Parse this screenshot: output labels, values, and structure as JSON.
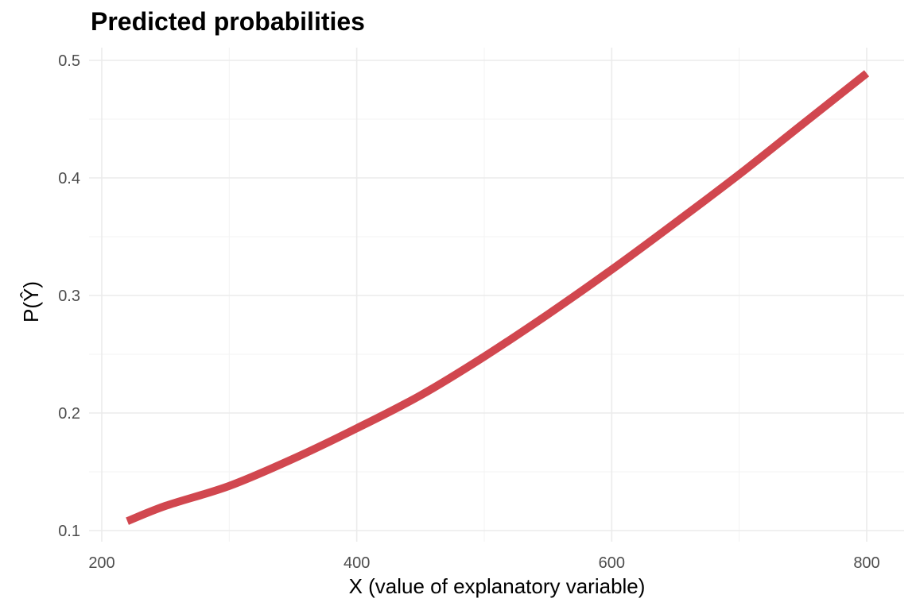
{
  "chart_data": {
    "type": "line",
    "title": "Predicted probabilities",
    "xlabel": "X (value of explanatory variable)",
    "ylabel": "P(Ŷ)",
    "xlim": [
      200,
      830
    ],
    "ylim": [
      0.1,
      0.5
    ],
    "x_ticks": [
      200,
      400,
      600,
      800
    ],
    "x_tick_labels": [
      "200",
      "400",
      "600",
      "800"
    ],
    "x_minor_ticks": [
      300,
      500,
      700
    ],
    "y_ticks": [
      0.1,
      0.2,
      0.3,
      0.4,
      0.5
    ],
    "y_tick_labels": [
      "0.1",
      "0.2",
      "0.3",
      "0.4",
      "0.5"
    ],
    "y_minor_ticks": [
      0.15,
      0.25,
      0.35,
      0.45
    ],
    "grid": true,
    "legend": "none",
    "color": "#d1474f",
    "series": [
      {
        "x": [
          220,
          250,
          300,
          350,
          400,
          450,
          500,
          550,
          600,
          650,
          700,
          750,
          800
        ],
        "values": [
          0.108,
          0.121,
          0.138,
          0.161,
          0.187,
          0.215,
          0.248,
          0.284,
          0.322,
          0.362,
          0.403,
          0.446,
          0.489
        ]
      }
    ]
  }
}
